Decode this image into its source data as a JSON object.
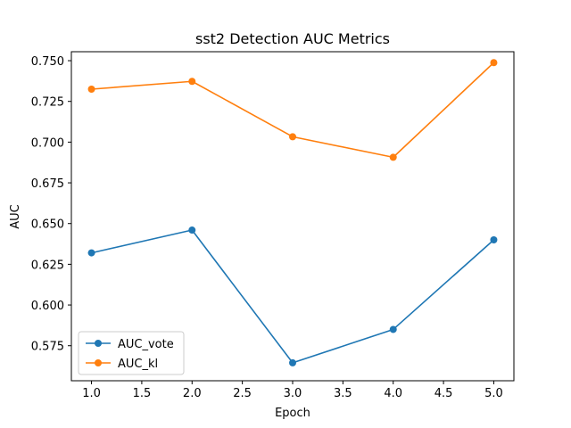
{
  "chart_data": {
    "type": "line",
    "title": "sst2 Detection AUC Metrics",
    "xlabel": "Epoch",
    "ylabel": "AUC",
    "xlim": [
      0.8,
      5.2
    ],
    "ylim": [
      0.5535,
      0.7555
    ],
    "xticks": [
      1.0,
      1.5,
      2.0,
      2.5,
      3.0,
      3.5,
      4.0,
      4.5,
      5.0
    ],
    "xtick_labels": [
      "1.0",
      "1.5",
      "2.0",
      "2.5",
      "3.0",
      "3.5",
      "4.0",
      "4.5",
      "5.0"
    ],
    "yticks": [
      0.575,
      0.6,
      0.625,
      0.65,
      0.675,
      0.7,
      0.725,
      0.75
    ],
    "ytick_labels": [
      "0.575",
      "0.600",
      "0.625",
      "0.650",
      "0.675",
      "0.700",
      "0.725",
      "0.750"
    ],
    "grid": false,
    "legend_position": "lower-left",
    "x": [
      1,
      2,
      3,
      4,
      5
    ],
    "series": [
      {
        "name": "AUC_vote",
        "color": "#1f77b4",
        "marker": "circle",
        "values": [
          0.632,
          0.646,
          0.5645,
          0.585,
          0.64
        ]
      },
      {
        "name": "AUC_kl",
        "color": "#ff7f0e",
        "marker": "circle",
        "values": [
          0.7325,
          0.7373,
          0.7033,
          0.6907,
          0.7488
        ]
      }
    ]
  }
}
